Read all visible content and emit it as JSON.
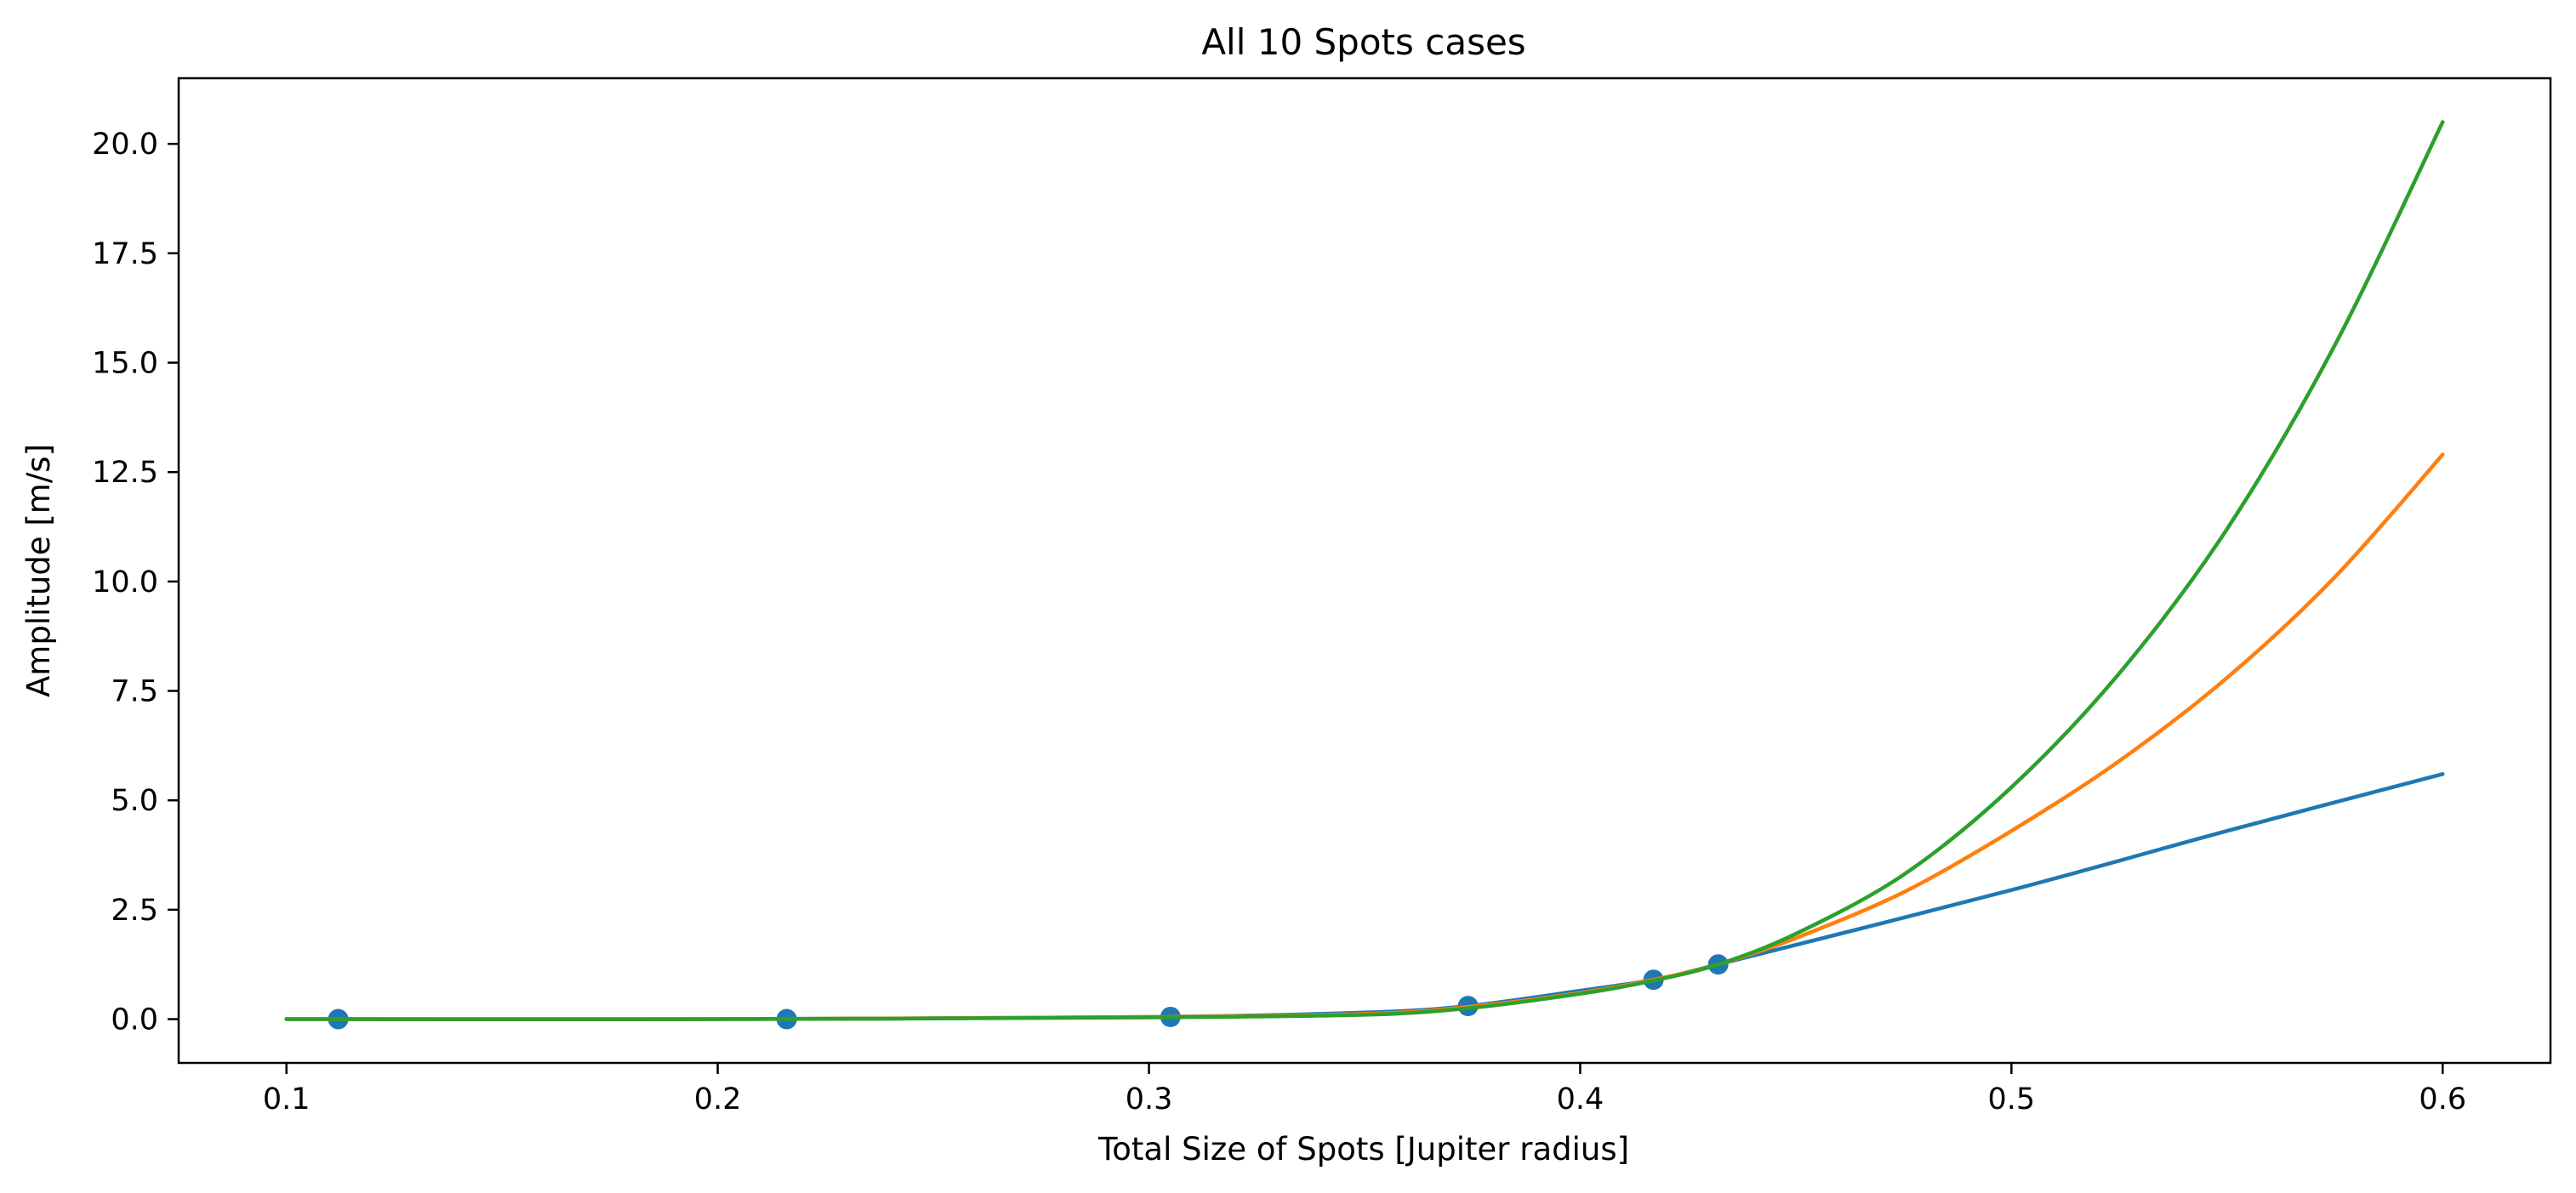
{
  "chart_data": {
    "type": "line",
    "title": "All 10 Spots cases",
    "xlabel": "Total Size of Spots [Jupiter radius]",
    "ylabel": "Amplitude [m/s]",
    "xlim": [
      0.075,
      0.625
    ],
    "ylim": [
      -1.0,
      21.5
    ],
    "grid": false,
    "x_ticks": [
      0.1,
      0.2,
      0.3,
      0.4,
      0.5,
      0.6
    ],
    "x_tick_labels": [
      "0.1",
      "0.2",
      "0.3",
      "0.4",
      "0.5",
      "0.6"
    ],
    "y_ticks": [
      0.0,
      2.5,
      5.0,
      7.5,
      10.0,
      12.5,
      15.0,
      17.5,
      20.0
    ],
    "y_tick_labels": [
      "0.0",
      "2.5",
      "5.0",
      "7.5",
      "10.0",
      "12.5",
      "15.0",
      "17.5",
      "20.0"
    ],
    "scatter": {
      "color": "#1f77b4",
      "x": [
        0.112,
        0.216,
        0.305,
        0.374,
        0.417,
        0.432
      ],
      "y": [
        0.0,
        0.0,
        0.05,
        0.3,
        0.9,
        1.25
      ]
    },
    "series": [
      {
        "color": "#1f77b4",
        "x": [
          0.1,
          0.2,
          0.3,
          0.35,
          0.374,
          0.4,
          0.417,
          0.432,
          0.5,
          0.55,
          0.6
        ],
        "y": [
          0.0,
          0.0,
          0.05,
          0.15,
          0.3,
          0.65,
          0.9,
          1.25,
          2.95,
          4.3,
          5.6
        ]
      },
      {
        "color": "#ff7f0e",
        "x": [
          0.1,
          0.2,
          0.3,
          0.35,
          0.374,
          0.4,
          0.417,
          0.432,
          0.45,
          0.475,
          0.5,
          0.525,
          0.55,
          0.575,
          0.6
        ],
        "y": [
          0.0,
          0.0,
          0.05,
          0.12,
          0.28,
          0.6,
          0.9,
          1.25,
          1.85,
          2.9,
          4.3,
          5.9,
          7.8,
          10.1,
          12.9
        ]
      },
      {
        "color": "#2ca02c",
        "x": [
          0.1,
          0.2,
          0.3,
          0.35,
          0.374,
          0.4,
          0.417,
          0.432,
          0.45,
          0.475,
          0.5,
          0.525,
          0.55,
          0.575,
          0.6
        ],
        "y": [
          0.0,
          0.0,
          0.04,
          0.1,
          0.25,
          0.58,
          0.88,
          1.25,
          1.95,
          3.3,
          5.3,
          7.9,
          11.2,
          15.4,
          20.5
        ]
      }
    ]
  }
}
